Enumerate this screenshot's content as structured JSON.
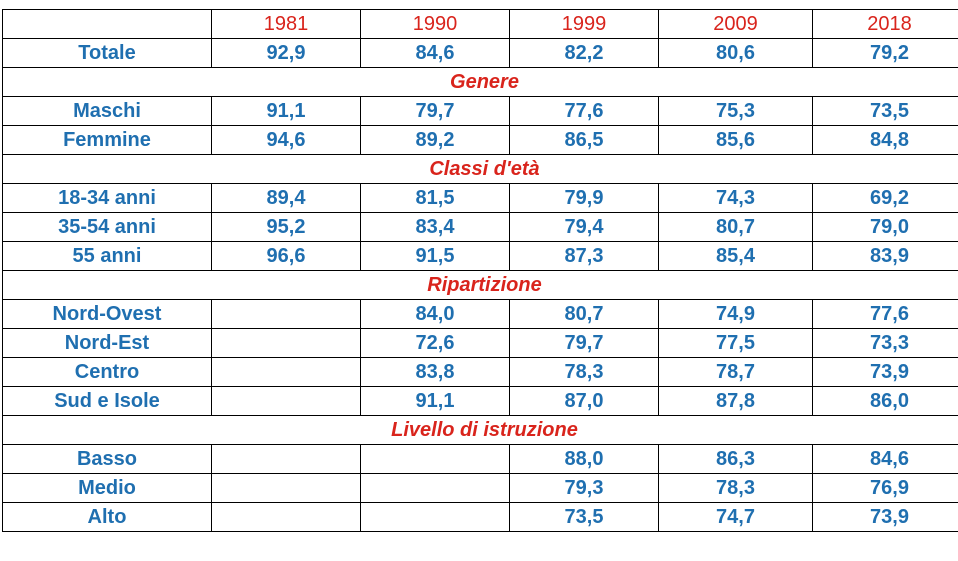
{
  "chart_data": {
    "type": "table",
    "columns": [
      "",
      "1981",
      "1990",
      "1999",
      "2009",
      "2018"
    ],
    "rows": [
      {
        "kind": "data",
        "label": "Totale",
        "values": [
          "92,9",
          "84,6",
          "82,2",
          "80,6",
          "79,2"
        ]
      },
      {
        "kind": "section",
        "label": "Genere"
      },
      {
        "kind": "data",
        "label": "Maschi",
        "values": [
          "91,1",
          "79,7",
          "77,6",
          "75,3",
          "73,5"
        ]
      },
      {
        "kind": "data",
        "label": "Femmine",
        "values": [
          "94,6",
          "89,2",
          "86,5",
          "85,6",
          "84,8"
        ]
      },
      {
        "kind": "section",
        "label": "Classi d'età"
      },
      {
        "kind": "data",
        "label": "18-34 anni",
        "values": [
          "89,4",
          "81,5",
          "79,9",
          "74,3",
          "69,2"
        ]
      },
      {
        "kind": "data",
        "label": "35-54 anni",
        "values": [
          "95,2",
          "83,4",
          "79,4",
          "80,7",
          "79,0"
        ]
      },
      {
        "kind": "data",
        "label": "55 anni",
        "values": [
          "96,6",
          "91,5",
          "87,3",
          "85,4",
          "83,9"
        ]
      },
      {
        "kind": "section",
        "label": "Ripartizione"
      },
      {
        "kind": "data",
        "label": "Nord-Ovest",
        "values": [
          "",
          "84,0",
          "80,7",
          "74,9",
          "77,6"
        ]
      },
      {
        "kind": "data",
        "label": "Nord-Est",
        "values": [
          "",
          "72,6",
          "79,7",
          "77,5",
          "73,3"
        ]
      },
      {
        "kind": "data",
        "label": "Centro",
        "values": [
          "",
          "83,8",
          "78,3",
          "78,7",
          "73,9"
        ]
      },
      {
        "kind": "data",
        "label": "Sud e Isole",
        "values": [
          "",
          "91,1",
          "87,0",
          "87,8",
          "86,0"
        ]
      },
      {
        "kind": "section",
        "label": "Livello di istruzione"
      },
      {
        "kind": "data",
        "label": "Basso",
        "values": [
          "",
          "",
          "88,0",
          "86,3",
          "84,6"
        ]
      },
      {
        "kind": "data",
        "label": "Medio",
        "values": [
          "",
          "",
          "79,3",
          "78,3",
          "76,9"
        ]
      },
      {
        "kind": "data",
        "label": "Alto",
        "values": [
          "",
          "",
          "73,5",
          "74,7",
          "73,9"
        ]
      }
    ],
    "colors": {
      "header": "#d9241c",
      "section": "#d9241c",
      "values": "#1f6fb0",
      "border": "#000000"
    }
  }
}
